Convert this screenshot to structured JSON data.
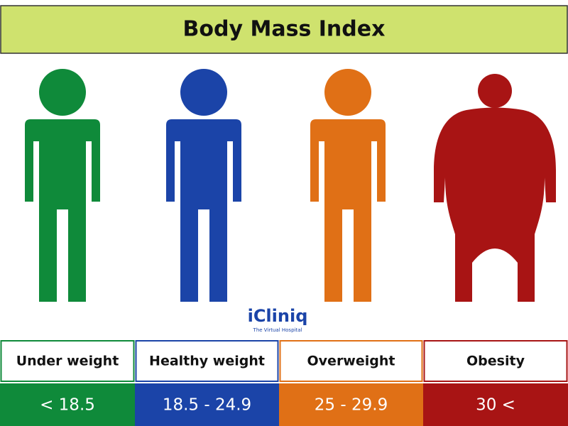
{
  "header": {
    "title": "Body Mass Index"
  },
  "logo": {
    "name": "iCliniq",
    "tagline": "The Virtual Hospital"
  },
  "categories": [
    {
      "label": "Under weight",
      "range": "< 18.5",
      "color": "#0f8a3a"
    },
    {
      "label": "Healthy weight",
      "range": "18.5 - 24.9",
      "color": "#1b44a8"
    },
    {
      "label": "Overweight",
      "range": "25 - 29.9",
      "color": "#e07016"
    },
    {
      "label": "Obesity",
      "range": "30 <",
      "color": "#a81414"
    }
  ]
}
